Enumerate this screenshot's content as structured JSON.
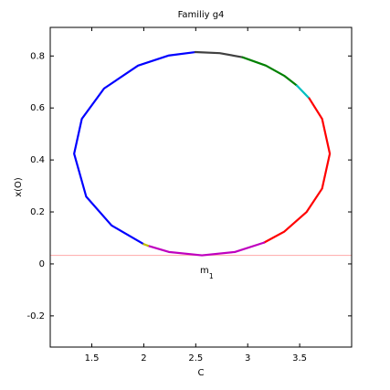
{
  "chart_data": {
    "type": "line",
    "title": "Familiy g4",
    "x_label": "C",
    "y_label": "x(O)",
    "xlim": [
      1.1,
      4.0
    ],
    "ylim": [
      -0.32,
      0.91
    ],
    "xticks": [
      1.5,
      2,
      2.5,
      3,
      3.5
    ],
    "yticks": [
      -0.2,
      0,
      0.2,
      0.4,
      0.6,
      0.8
    ],
    "grid": false,
    "hline": {
      "value": 0.033,
      "color": "#ffb3b3"
    },
    "annotation": {
      "text": "m",
      "subscript": "1"
    },
    "series": [
      {
        "color": "#0000ff",
        "x": [
          2.0,
          1.69,
          1.446,
          1.33,
          1.404,
          1.618,
          1.945,
          2.242,
          2.496
        ],
        "values": [
          0.076,
          0.148,
          0.259,
          0.424,
          0.558,
          0.675,
          0.763,
          0.802,
          0.815
        ]
      },
      {
        "color": "#404040",
        "x": [
          2.496,
          2.731,
          2.95
        ],
        "values": [
          0.815,
          0.811,
          0.795
        ]
      },
      {
        "color": "#008000",
        "x": [
          2.95,
          3.175,
          3.351,
          3.474
        ],
        "values": [
          0.795,
          0.763,
          0.724,
          0.686
        ]
      },
      {
        "color": "#00bfbf",
        "x": [
          3.474,
          3.592
        ],
        "values": [
          0.686,
          0.637
        ]
      },
      {
        "color": "#ff0000",
        "x": [
          3.592,
          3.716,
          3.79,
          3.716,
          3.567,
          3.351,
          3.157
        ],
        "values": [
          0.637,
          0.558,
          0.424,
          0.29,
          0.2,
          0.124,
          0.082
        ]
      },
      {
        "color": "#bf00bf",
        "x": [
          3.157,
          2.879,
          2.56,
          2.241,
          2.04
        ],
        "values": [
          0.082,
          0.046,
          0.033,
          0.046,
          0.07
        ]
      },
      {
        "color": "#bfbf00",
        "x": [
          2.04,
          2.0
        ],
        "values": [
          0.07,
          0.076
        ]
      }
    ]
  }
}
